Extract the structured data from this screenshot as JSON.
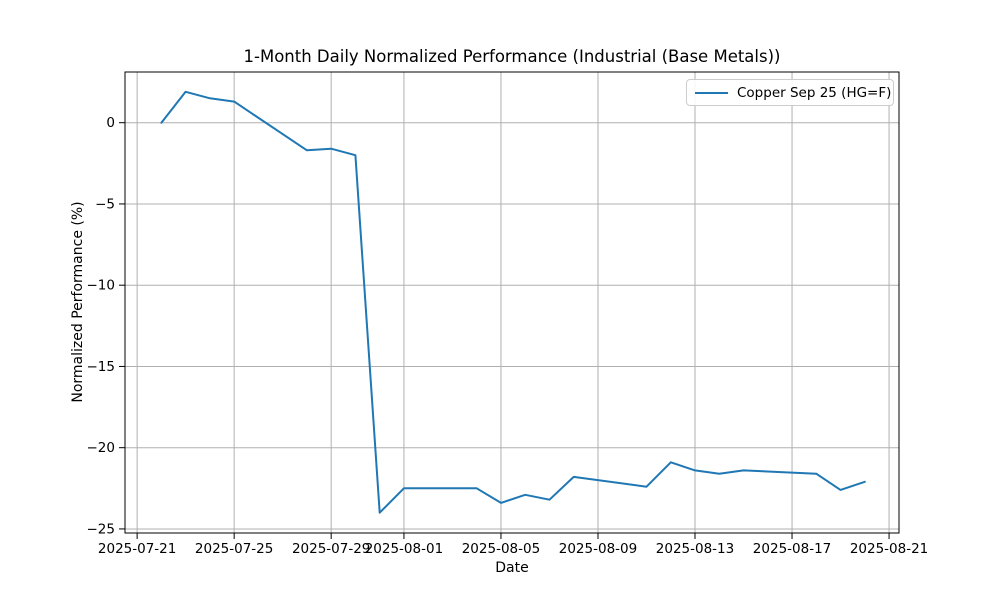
{
  "figure": {
    "title": "1-Month Daily Normalized Performance (Industrial (Base Metals))",
    "x_axis_label": "Date",
    "y_axis_label": "Normalized Performance (%)"
  },
  "legend": {
    "label": "Copper Sep 25 (HG=F)",
    "line_color": "#1f77b4",
    "position": "upper right"
  },
  "chart_data": {
    "type": "line",
    "title": "1-Month Daily Normalized Performance (Industrial (Base Metals))",
    "xlabel": "Date",
    "ylabel": "Normalized Performance (%)",
    "grid": true,
    "legend_position": "upper right",
    "start_date": "2025-07-21",
    "xlim_days": [
      -0.5,
      31.41
    ],
    "ylim": [
      -25.25,
      3.12
    ],
    "x_tick_dates": [
      "2025-07-21",
      "2025-07-25",
      "2025-07-29",
      "2025-08-01",
      "2025-08-05",
      "2025-08-09",
      "2025-08-13",
      "2025-08-17",
      "2025-08-21"
    ],
    "x_tick_labels": [
      "2025-07-21",
      "2025-07-25",
      "2025-07-29",
      "2025-08-01",
      "2025-08-05",
      "2025-08-09",
      "2025-08-13",
      "2025-08-17",
      "2025-08-21"
    ],
    "y_ticks": [
      0,
      -5,
      -10,
      -15,
      -20,
      -25
    ],
    "y_tick_labels": [
      "0",
      "−5",
      "−10",
      "−15",
      "−20",
      "−25"
    ],
    "colors": {
      "line": "#1f77b4",
      "grid": "#b0b0b0",
      "spine": "#000000"
    },
    "series": [
      {
        "name": "Copper Sep 25 (HG=F)",
        "color": "#1f77b4",
        "dates": [
          "2025-07-22",
          "2025-07-23",
          "2025-07-24",
          "2025-07-25",
          "2025-07-28",
          "2025-07-29",
          "2025-07-30",
          "2025-07-31",
          "2025-08-01",
          "2025-08-04",
          "2025-08-05",
          "2025-08-06",
          "2025-08-07",
          "2025-08-08",
          "2025-08-11",
          "2025-08-12",
          "2025-08-13",
          "2025-08-14",
          "2025-08-15",
          "2025-08-18",
          "2025-08-19",
          "2025-08-20"
        ],
        "values": [
          0.0,
          1.9,
          1.5,
          1.3,
          -1.7,
          -1.6,
          -2.0,
          -24.0,
          -22.5,
          -22.5,
          -23.4,
          -22.9,
          -23.2,
          -21.8,
          -22.4,
          -20.9,
          -21.4,
          -21.6,
          -21.4,
          -21.6,
          -22.6,
          -22.1
        ]
      }
    ]
  }
}
